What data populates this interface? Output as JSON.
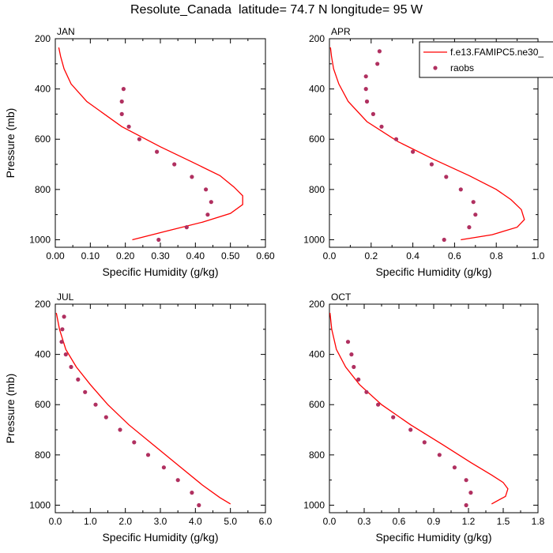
{
  "title": "Resolute_Canada  latitude= 74.7 N longitude= 95 W",
  "legend": {
    "model_label": "f.e13.FAMIPC5.ne30_",
    "obs_label": "raobs",
    "model_color": "#ff0000",
    "obs_color": "#b03060"
  },
  "chart_data": [
    {
      "type": "line",
      "panel": "JAN",
      "xlabel": "Specific Humidity (g/kg)",
      "ylabel": "Pressure (mb)",
      "xlim": [
        0,
        0.6
      ],
      "ylim": [
        1030,
        200
      ],
      "xticks": [
        "0.00",
        "0.10",
        "0.20",
        "0.30",
        "0.40",
        "0.50",
        "0.60"
      ],
      "xtick_values": [
        0,
        0.1,
        0.2,
        0.3,
        0.4,
        0.5,
        0.6
      ],
      "yticks": [
        "200",
        "400",
        "600",
        "800",
        "1000"
      ],
      "ytick_values": [
        200,
        400,
        600,
        800,
        1000
      ],
      "model": {
        "x": [
          0.01,
          0.015,
          0.025,
          0.045,
          0.09,
          0.19,
          0.3,
          0.39,
          0.47,
          0.51,
          0.535,
          0.535,
          0.5,
          0.42,
          0.32,
          0.22
        ],
        "y": [
          235,
          270,
          320,
          380,
          450,
          550,
          630,
          690,
          745,
          790,
          825,
          860,
          895,
          930,
          965,
          1000
        ]
      },
      "obs": {
        "x": [
          0.195,
          0.19,
          0.19,
          0.21,
          0.24,
          0.29,
          0.34,
          0.39,
          0.43,
          0.445,
          0.435,
          0.375,
          0.295
        ],
        "y": [
          400,
          450,
          500,
          550,
          600,
          650,
          700,
          750,
          800,
          850,
          900,
          950,
          1000
        ]
      }
    },
    {
      "type": "line",
      "panel": "APR",
      "xlabel": "Specific Humidity (g/kg)",
      "ylabel": "",
      "xlim": [
        0,
        1.0
      ],
      "ylim": [
        1030,
        200
      ],
      "xticks": [
        "0.0",
        "0.2",
        "0.4",
        "0.6",
        "0.8",
        "1.0"
      ],
      "xtick_values": [
        0,
        0.2,
        0.4,
        0.6,
        0.8,
        1.0
      ],
      "yticks": [
        "200",
        "400",
        "600",
        "800",
        "1000"
      ],
      "ytick_values": [
        200,
        400,
        600,
        800,
        1000
      ],
      "model": {
        "x": [
          0.005,
          0.01,
          0.02,
          0.045,
          0.09,
          0.18,
          0.33,
          0.5,
          0.67,
          0.8,
          0.87,
          0.92,
          0.935,
          0.9,
          0.78,
          0.63
        ],
        "y": [
          235,
          270,
          320,
          380,
          450,
          530,
          610,
          680,
          745,
          800,
          840,
          880,
          920,
          950,
          980,
          1000
        ]
      },
      "obs": {
        "x": [
          0.24,
          0.23,
          0.175,
          0.175,
          0.18,
          0.21,
          0.25,
          0.32,
          0.4,
          0.49,
          0.56,
          0.63,
          0.69,
          0.7,
          0.67,
          0.55
        ],
        "y": [
          250,
          300,
          350,
          400,
          450,
          500,
          550,
          600,
          650,
          700,
          750,
          800,
          850,
          900,
          950,
          1000
        ]
      }
    },
    {
      "type": "line",
      "panel": "JUL",
      "xlabel": "Specific Humidity (g/kg)",
      "ylabel": "Pressure (mb)",
      "xlim": [
        0,
        6.0
      ],
      "ylim": [
        1030,
        200
      ],
      "xticks": [
        "0.0",
        "1.0",
        "2.0",
        "3.0",
        "4.0",
        "5.0",
        "6.0"
      ],
      "xtick_values": [
        0,
        1,
        2,
        3,
        4,
        5,
        6
      ],
      "yticks": [
        "200",
        "400",
        "600",
        "800",
        "1000"
      ],
      "ytick_values": [
        200,
        400,
        600,
        800,
        1000
      ],
      "model": {
        "x": [
          0.03,
          0.12,
          0.3,
          0.6,
          1.0,
          1.5,
          2.1,
          2.8,
          3.5,
          4.2,
          4.7,
          5.0
        ],
        "y": [
          235,
          300,
          380,
          450,
          520,
          600,
          680,
          760,
          840,
          920,
          970,
          995
        ]
      },
      "obs": {
        "x": [
          0.25,
          0.2,
          0.18,
          0.3,
          0.45,
          0.65,
          0.85,
          1.15,
          1.45,
          1.85,
          2.25,
          2.65,
          3.1,
          3.5,
          3.9,
          4.1
        ],
        "y": [
          250,
          300,
          350,
          400,
          450,
          500,
          550,
          600,
          650,
          700,
          750,
          800,
          850,
          900,
          950,
          1000
        ]
      }
    },
    {
      "type": "line",
      "panel": "OCT",
      "xlabel": "Specific Humidity (g/kg)",
      "ylabel": "",
      "xlim": [
        0,
        1.8
      ],
      "ylim": [
        1030,
        200
      ],
      "xticks": [
        "0.0",
        "0.3",
        "0.6",
        "0.9",
        "1.2",
        "1.5",
        "1.8"
      ],
      "xtick_values": [
        0,
        0.3,
        0.6,
        0.9,
        1.2,
        1.5,
        1.8
      ],
      "yticks": [
        "200",
        "400",
        "600",
        "800",
        "1000"
      ],
      "ytick_values": [
        200,
        400,
        600,
        800,
        1000
      ],
      "model": {
        "x": [
          0.005,
          0.02,
          0.06,
          0.14,
          0.26,
          0.45,
          0.7,
          0.98,
          1.22,
          1.4,
          1.5,
          1.54,
          1.52,
          1.4
        ],
        "y": [
          235,
          300,
          380,
          450,
          520,
          600,
          680,
          760,
          830,
          880,
          910,
          935,
          965,
          995
        ]
      },
      "obs": {
        "x": [
          0.16,
          0.19,
          0.21,
          0.25,
          0.32,
          0.42,
          0.55,
          0.7,
          0.82,
          0.95,
          1.08,
          1.18,
          1.22,
          1.18
        ],
        "y": [
          350,
          400,
          450,
          500,
          550,
          600,
          650,
          700,
          750,
          800,
          850,
          900,
          950,
          1000
        ]
      }
    }
  ]
}
